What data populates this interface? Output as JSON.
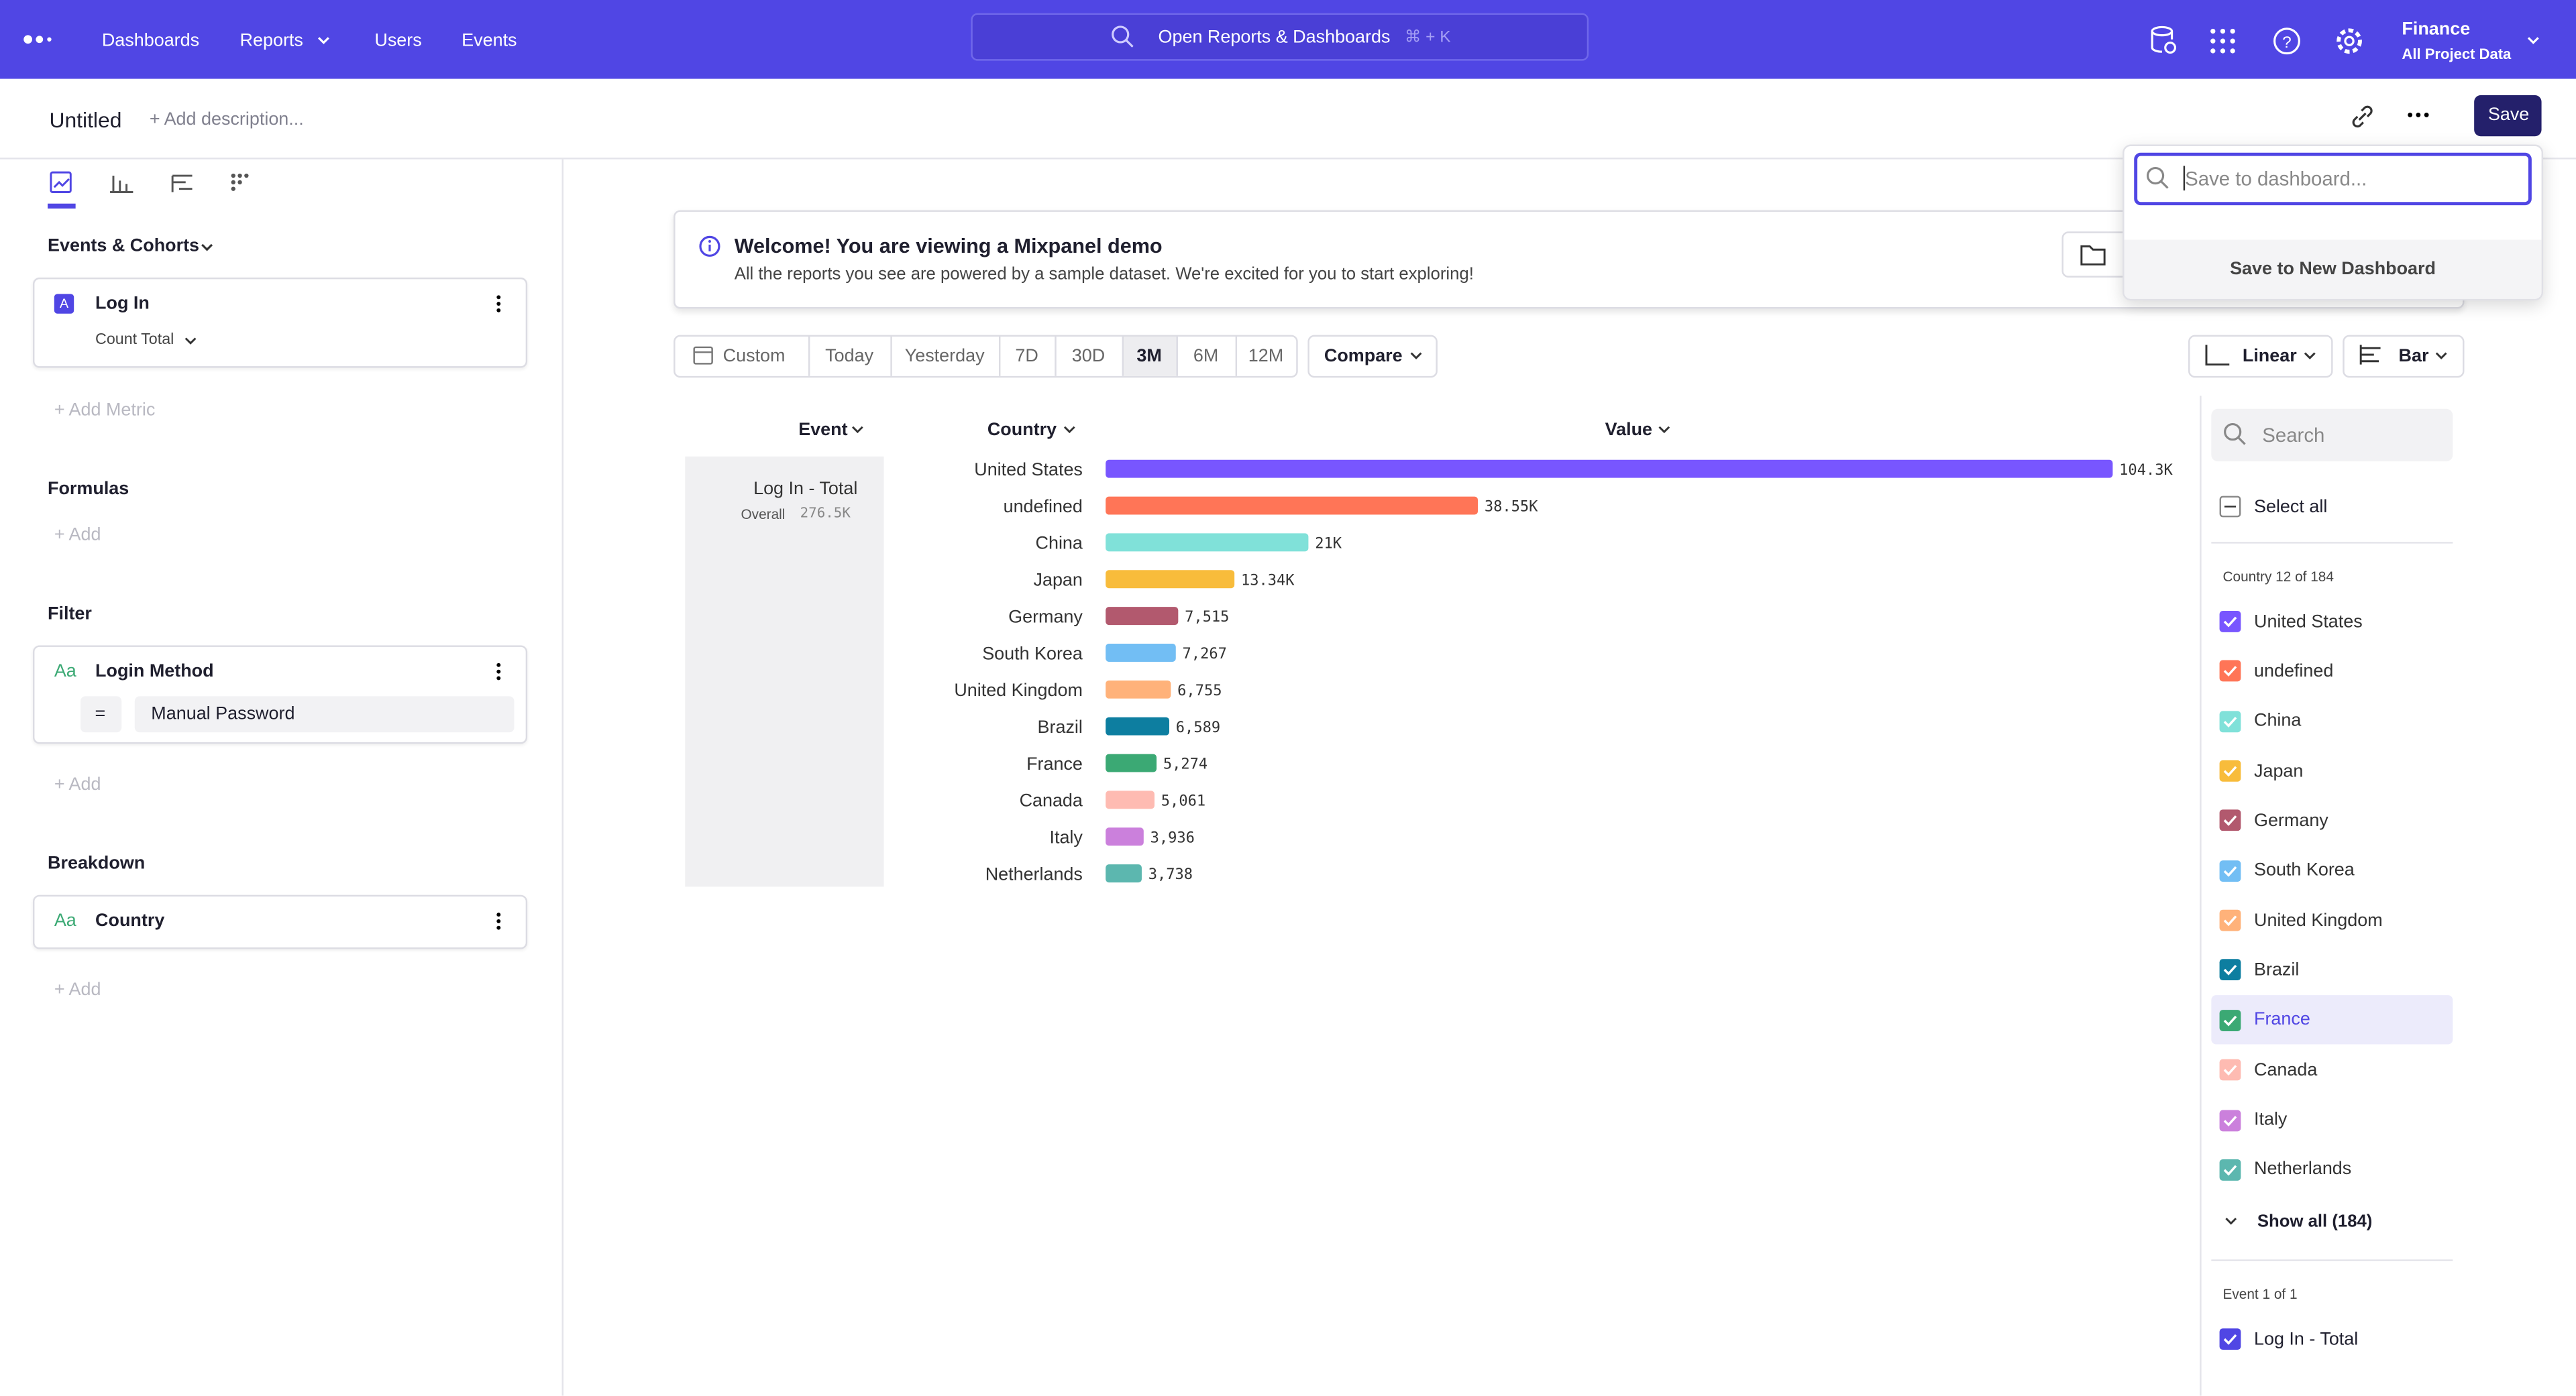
{
  "nav": {
    "items": [
      "Dashboards",
      "Reports",
      "Users",
      "Events"
    ],
    "search": "Open Reports & Dashboards",
    "shortcut": "⌘ + K",
    "project": "Finance",
    "project_sub": "All Project Data"
  },
  "header": {
    "title": "Untitled",
    "description": "+ Add description...",
    "save": "Save"
  },
  "save_menu": {
    "placeholder": "Save to dashboard...",
    "new_dashboard": "Save to New Dashboard"
  },
  "sidebar": {
    "events_heading": "Events & Cohorts",
    "metric": {
      "badge": "A",
      "name": "Log In",
      "measure": "Count Total"
    },
    "add_metric": "+ Add Metric",
    "formulas": "Formulas",
    "add_formula": "+ Add",
    "filter": "Filter",
    "filter_item": {
      "icon": "Aa",
      "name": "Login Method",
      "operator": "=",
      "value": "Manual Password"
    },
    "add_filter": "+ Add",
    "breakdown": "Breakdown",
    "breakdown_item": {
      "icon": "Aa",
      "name": "Country"
    },
    "add_breakdown": "+ Add"
  },
  "banner": {
    "title": "Welcome! You are viewing a Mixpanel demo",
    "text": "All the reports you see are powered by a sample dataset. We're excited for you to start exploring!"
  },
  "date_ranges": [
    "Custom",
    "Today",
    "Yesterday",
    "7D",
    "30D",
    "3M",
    "6M",
    "12M"
  ],
  "compare": "Compare",
  "scale_menu": "Linear",
  "chart_menu": "Bar",
  "chart_data": {
    "type": "bar",
    "orientation": "horizontal",
    "columns": [
      "Event",
      "Country",
      "Value"
    ],
    "event": "Log In - Total",
    "overall_label": "Overall",
    "overall_value": "276.5K",
    "categories": [
      "United States",
      "undefined",
      "China",
      "Japan",
      "Germany",
      "South Korea",
      "United Kingdom",
      "Brazil",
      "France",
      "Canada",
      "Italy",
      "Netherlands"
    ],
    "values": [
      104300,
      38550,
      21000,
      13340,
      7515,
      7267,
      6755,
      6589,
      5274,
      5061,
      3936,
      3738
    ],
    "value_labels": [
      "104.3K",
      "38.55K",
      "21K",
      "13.34K",
      "7,515",
      "7,267",
      "6,755",
      "6,589",
      "5,274",
      "5,061",
      "3,936",
      "3,738"
    ],
    "colors": [
      "#7856ff",
      "#ff7557",
      "#80e1d9",
      "#f8bc3b",
      "#b2596e",
      "#72bef4",
      "#ffb27a",
      "#0d7ea0",
      "#3ba974",
      "#febbb2",
      "#cb80dc",
      "#5cb7af"
    ]
  },
  "legend": {
    "search": "Search",
    "select_all": "Select all",
    "country_count": "Country 12 of 184",
    "show_all": "Show all (184)",
    "event_count": "Event 1 of 1"
  }
}
